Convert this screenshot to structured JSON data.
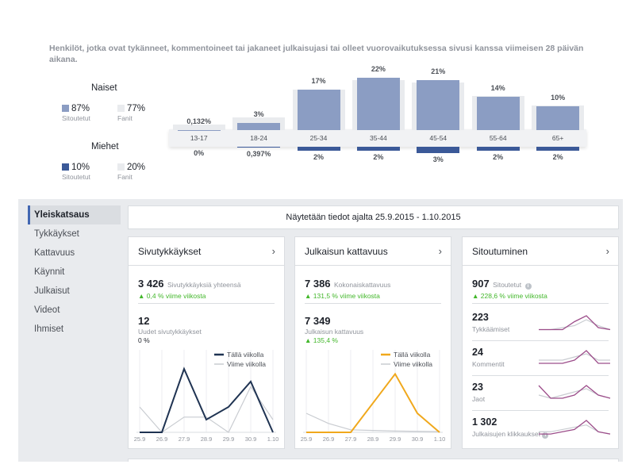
{
  "intro": "Henkilöt, jotka ovat tykänneet, kommentoineet tai jakaneet julkaisujasi tai olleet vuorovaikutuksessa sivusi kanssa viimeisen 28 päivän aikana.",
  "women": {
    "title": "Naiset",
    "engaged_pct": "87%",
    "engaged_label": "Sitoutetut",
    "fans_pct": "77%",
    "fans_label": "Fanit"
  },
  "men": {
    "title": "Miehet",
    "engaged_pct": "10%",
    "engaged_label": "Sitoutetut",
    "fans_pct": "20%",
    "fans_label": "Fanit"
  },
  "age_chart": {
    "groups": [
      "13-17",
      "18-24",
      "25-34",
      "35-44",
      "45-54",
      "55-64",
      "65+"
    ],
    "women_labels": [
      "0,132%",
      "3%",
      "17%",
      "22%",
      "21%",
      "14%",
      "10%"
    ],
    "women_values": [
      0.132,
      3,
      17,
      22,
      21,
      14,
      10
    ],
    "women_fan_values": [
      0.2,
      3.4,
      15,
      19,
      18,
      12.5,
      8.5
    ],
    "men_labels": [
      "0%",
      "0,397%",
      "2%",
      "2%",
      "3%",
      "2%",
      "2%"
    ],
    "men_values": [
      0,
      0.397,
      2,
      2,
      3,
      2,
      2
    ],
    "men_fan_values": [
      0,
      0.5,
      2.5,
      2.5,
      3,
      2.5,
      2.5
    ]
  },
  "nav": {
    "items": [
      "Yleiskatsaus",
      "Tykkäykset",
      "Kattavuus",
      "Käynnit",
      "Julkaisut",
      "Videot",
      "Ihmiset"
    ]
  },
  "date_range": "Näytetään tiedot ajalta 25.9.2015 - 1.10.2015",
  "cards": {
    "likes": {
      "title": "Sivutykkäykset",
      "total": "3 426",
      "total_label": "Sivutykkäyksiä yhteensä",
      "total_change": "0,4 % viime viikosta",
      "new": "12",
      "new_label": "Uudet sivutykkäykset",
      "new_change": "0 %",
      "legend_this": "Tällä viikolla",
      "legend_last": "Viime viikolla",
      "chart_data": {
        "type": "line",
        "x": [
          "25.9",
          "26.9",
          "27.9",
          "28.9",
          "29.9",
          "30.9",
          "1.10"
        ],
        "series": [
          {
            "name": "Tällä viikolla",
            "values": [
              0,
              0,
              5,
              1,
              2,
              4,
              0
            ]
          },
          {
            "name": "Viime viikolla",
            "values": [
              2,
              0,
              1.2,
              1.2,
              0,
              3.6,
              1
            ]
          }
        ],
        "ylim": [
          0,
          6
        ]
      }
    },
    "reach": {
      "title": "Julkaisun kattavuus",
      "total": "7 386",
      "total_label": "Kokonaiskattavuus",
      "total_change": "131,5 % viime viikosta",
      "post": "7 349",
      "post_label": "Julkaisun kattavuus",
      "post_change": "135,4 %",
      "legend_this": "Tällä viikolla",
      "legend_last": "Viime viikolla",
      "chart_data": {
        "type": "line",
        "x": [
          "25.9",
          "26.9",
          "27.9",
          "28.9",
          "29.9",
          "30.9",
          "1.10"
        ],
        "series": [
          {
            "name": "Tällä viikolla",
            "values": [
              0,
              0,
              0,
              2300,
              4600,
              1500,
              0
            ]
          },
          {
            "name": "Viime viikolla",
            "values": [
              1500,
              700,
              200,
              150,
              100,
              80,
              60
            ]
          }
        ],
        "ylim": [
          0,
          6000
        ]
      }
    },
    "engagement": {
      "title": "Sitoutuminen",
      "total": "907",
      "total_label": "Sitoutetut",
      "total_change": "228,6 % viime viikosta",
      "rows": [
        {
          "value": "223",
          "label": "Tykkäämiset",
          "this": [
            1,
            1,
            1,
            5,
            8,
            2,
            1
          ],
          "last": [
            1,
            1,
            2,
            3,
            6,
            3,
            1
          ]
        },
        {
          "value": "24",
          "label": "Kommentit",
          "this": [
            1,
            1,
            1,
            2,
            5,
            1,
            1
          ],
          "last": [
            2,
            2,
            2,
            3,
            4,
            2,
            2
          ]
        },
        {
          "value": "23",
          "label": "Jaot",
          "this": [
            5,
            1,
            1,
            2,
            5,
            2,
            1
          ],
          "last": [
            2,
            1,
            2,
            3,
            4,
            2,
            1
          ]
        },
        {
          "value": "1 302",
          "label": "Julkaisujen klikkaukset",
          "this": [
            1,
            1,
            2,
            3,
            7,
            2,
            1
          ],
          "last": [
            2,
            2,
            3,
            4,
            5,
            2,
            1
          ]
        }
      ]
    }
  },
  "colors": {
    "women": "#8b9dc3",
    "men": "#3b5998",
    "this_week_likes": "#1f3352",
    "this_week_reach": "#f0a81c",
    "last_week": "#c9ccd1",
    "spark_this": "#9c4d8a",
    "spark_last": "#c9ccd1",
    "positive": "#42b72a"
  }
}
